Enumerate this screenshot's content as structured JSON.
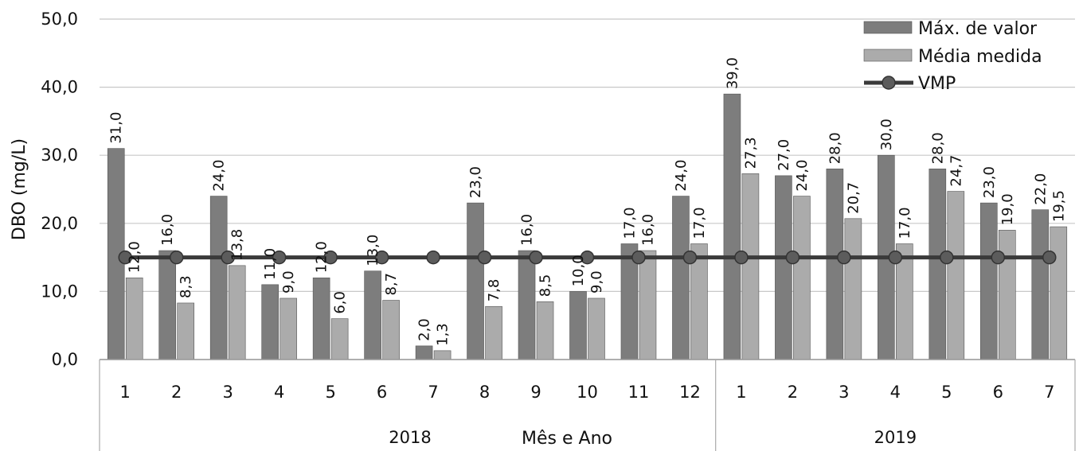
{
  "chart_data": {
    "type": "bar",
    "ylabel": "DBO (mg/L)",
    "xlabel": "Mês e Ano",
    "ylim": [
      0,
      50
    ],
    "yticks": [
      "0,0",
      "10,0",
      "20,0",
      "30,0",
      "40,0",
      "50,0"
    ],
    "categories": [
      "1",
      "2",
      "3",
      "4",
      "5",
      "6",
      "7",
      "8",
      "9",
      "10",
      "11",
      "12",
      "1",
      "2",
      "3",
      "4",
      "5",
      "6",
      "7"
    ],
    "groups": [
      {
        "label": "2018",
        "count": 12
      },
      {
        "label": "2019",
        "count": 7
      }
    ],
    "legend_position": "top-right",
    "grid": true,
    "series": [
      {
        "name": "Máx. de valor",
        "kind": "bar",
        "color": "#7d7d7d",
        "values": [
          31.0,
          16.0,
          24.0,
          11.0,
          12.0,
          13.0,
          2.0,
          23.0,
          16.0,
          10.0,
          17.0,
          24.0,
          39.0,
          27.0,
          28.0,
          30.0,
          28.0,
          23.0,
          22.0
        ],
        "labels": [
          "31,0",
          "16,0",
          "24,0",
          "11,0",
          "12,0",
          "13,0",
          "2,0",
          "23,0",
          "16,0",
          "10,0",
          "17,0",
          "24,0",
          "39,0",
          "27,0",
          "28,0",
          "30,0",
          "28,0",
          "23,0",
          "22,0"
        ]
      },
      {
        "name": "Média medida",
        "kind": "bar",
        "color": "#ababab",
        "values": [
          12.0,
          8.3,
          13.8,
          9.0,
          6.0,
          8.7,
          1.3,
          7.8,
          8.5,
          9.0,
          16.0,
          17.0,
          27.3,
          24.0,
          20.7,
          17.0,
          24.7,
          19.0,
          19.5
        ],
        "labels": [
          "12,0",
          "8,3",
          "13,8",
          "9,0",
          "6,0",
          "8,7",
          "1,3",
          "7,8",
          "8,5",
          "9,0",
          "16,0",
          "17,0",
          "27,3",
          "24,0",
          "20,7",
          "17,0",
          "24,7",
          "19,0",
          "19,5"
        ]
      },
      {
        "name": "VMP",
        "kind": "line",
        "color": "#3a3a3a",
        "values": [
          15,
          15,
          15,
          15,
          15,
          15,
          15,
          15,
          15,
          15,
          15,
          15,
          15,
          15,
          15,
          15,
          15,
          15,
          15
        ]
      }
    ]
  }
}
